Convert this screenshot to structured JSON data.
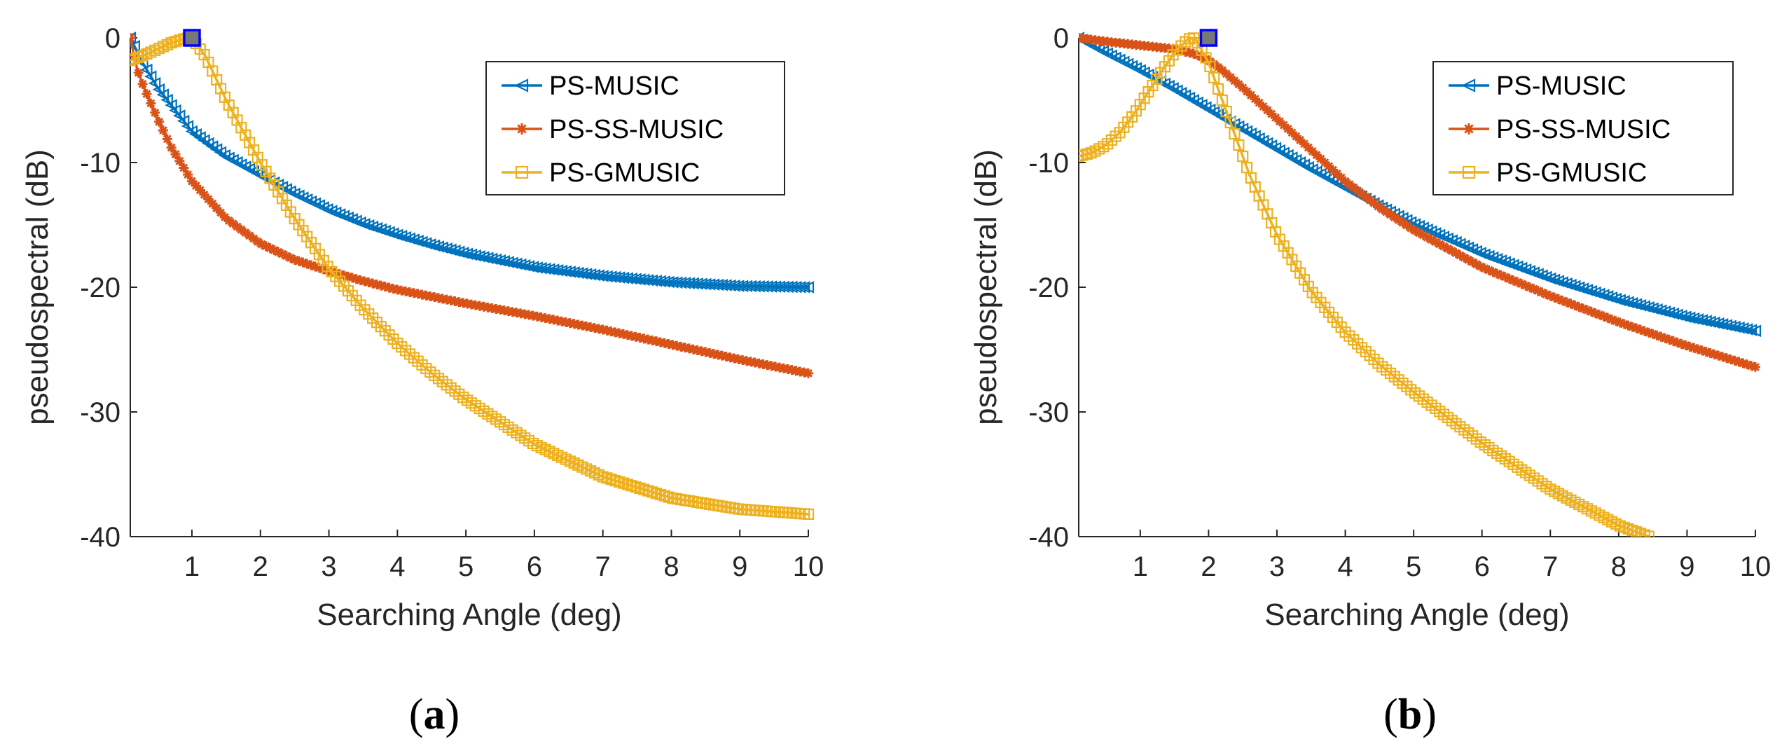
{
  "chart_data": [
    {
      "type": "line",
      "caption": "a",
      "xlabel": "Searching Angle (deg)",
      "ylabel": "pseudospectral (dB)",
      "xlim": [
        0.1,
        10
      ],
      "ylim": [
        -40,
        0
      ],
      "xticks": [
        1,
        2,
        3,
        4,
        5,
        6,
        7,
        8,
        9,
        10
      ],
      "yticks": [
        0,
        -10,
        -20,
        -30,
        -40
      ],
      "grid": false,
      "legend_position": "top-right",
      "series": [
        {
          "name": "PS-MUSIC",
          "color": "#0072BD",
          "marker": "triangle-left",
          "x": [
            0.1,
            0.3,
            0.5,
            0.7,
            1.0,
            1.5,
            2.0,
            2.5,
            3.0,
            3.5,
            4.0,
            4.5,
            5.0,
            6.0,
            7.0,
            8.0,
            9.0,
            10.0
          ],
          "y": [
            0,
            -2.2,
            -4,
            -5.4,
            -7.5,
            -9.5,
            -11,
            -12.5,
            -13.8,
            -14.9,
            -15.8,
            -16.6,
            -17.3,
            -18.4,
            -19.1,
            -19.6,
            -19.9,
            -20
          ]
        },
        {
          "name": "PS-SS-MUSIC",
          "color": "#D95319",
          "marker": "star",
          "x": [
            0.1,
            0.2,
            0.3,
            0.5,
            0.7,
            1.0,
            1.5,
            2.0,
            2.5,
            3.0,
            3.5,
            4.0,
            5.0,
            6.0,
            7.0,
            8.0,
            9.0,
            10.0
          ],
          "y": [
            0,
            -2.5,
            -4,
            -6.5,
            -8.8,
            -11.5,
            -14.5,
            -16.5,
            -17.8,
            -18.7,
            -19.5,
            -20.2,
            -21.3,
            -22.3,
            -23.4,
            -24.6,
            -25.8,
            -26.9
          ]
        },
        {
          "name": "PS-GMUSIC",
          "color": "#EDB120",
          "marker": "square",
          "x": [
            0.1,
            0.3,
            0.5,
            0.7,
            0.9,
            1.0,
            1.2,
            1.5,
            2.0,
            2.5,
            3.0,
            3.5,
            4.0,
            4.5,
            5.0,
            6.0,
            7.0,
            8.0,
            9.0,
            10.0
          ],
          "y": [
            -1.8,
            -1.4,
            -0.9,
            -0.4,
            -0.05,
            0,
            -1.5,
            -5,
            -10,
            -14.5,
            -18.5,
            -21.7,
            -24.5,
            -26.9,
            -29,
            -32.6,
            -35.2,
            -36.9,
            -37.8,
            -38.2
          ]
        }
      ],
      "peak_marker": {
        "x": 1.0,
        "y": 0,
        "color": "#0000FF",
        "fill": "#777777"
      }
    },
    {
      "type": "line",
      "caption": "b",
      "xlabel": "Searching Angle (deg)",
      "ylabel": "pseudospectral (dB)",
      "xlim": [
        0.1,
        10
      ],
      "ylim": [
        -40,
        0
      ],
      "xticks": [
        1,
        2,
        3,
        4,
        5,
        6,
        7,
        8,
        9,
        10
      ],
      "yticks": [
        0,
        -10,
        -20,
        -30,
        -40
      ],
      "grid": false,
      "legend_position": "top-right",
      "series": [
        {
          "name": "PS-MUSIC",
          "color": "#0072BD",
          "marker": "triangle-left",
          "x": [
            0.1,
            0.5,
            1.0,
            1.5,
            2.0,
            2.5,
            3.0,
            3.5,
            4.0,
            4.5,
            5.0,
            6.0,
            7.0,
            8.0,
            9.0,
            10.0
          ],
          "y": [
            0,
            -1.2,
            -2.6,
            -4.1,
            -5.7,
            -7.3,
            -8.9,
            -10.5,
            -12,
            -13.5,
            -14.9,
            -17.3,
            -19.3,
            -21,
            -22.4,
            -23.5
          ]
        },
        {
          "name": "PS-SS-MUSIC",
          "color": "#D95319",
          "marker": "star",
          "x": [
            0.1,
            0.5,
            1.0,
            1.5,
            1.8,
            2.0,
            2.2,
            2.5,
            3.0,
            3.5,
            4.0,
            4.5,
            5.0,
            6.0,
            7.0,
            8.0,
            9.0,
            10.0
          ],
          "y": [
            0,
            -0.3,
            -0.6,
            -0.9,
            -1.3,
            -1.8,
            -2.6,
            -4,
            -6.5,
            -9,
            -11.5,
            -13.6,
            -15.4,
            -18.4,
            -20.7,
            -22.8,
            -24.7,
            -26.4
          ]
        },
        {
          "name": "PS-GMUSIC",
          "color": "#EDB120",
          "marker": "square",
          "x": [
            0.1,
            0.3,
            0.5,
            0.7,
            0.9,
            1.1,
            1.3,
            1.5,
            1.7,
            1.8,
            2.0,
            2.3,
            2.6,
            3.0,
            3.5,
            4.0,
            4.5,
            5.0,
            6.0,
            7.0,
            8.0,
            8.45
          ],
          "y": [
            -9.5,
            -9.2,
            -8.6,
            -7.6,
            -6.2,
            -4.5,
            -2.8,
            -1.2,
            -0.1,
            0,
            -2,
            -6.5,
            -11,
            -15.8,
            -20.3,
            -23.6,
            -26.2,
            -28.4,
            -32.5,
            -36.2,
            -39.1,
            -40
          ]
        }
      ],
      "peak_marker": {
        "x": 2.0,
        "y": 0,
        "color": "#0000FF",
        "fill": "#777777"
      }
    }
  ]
}
